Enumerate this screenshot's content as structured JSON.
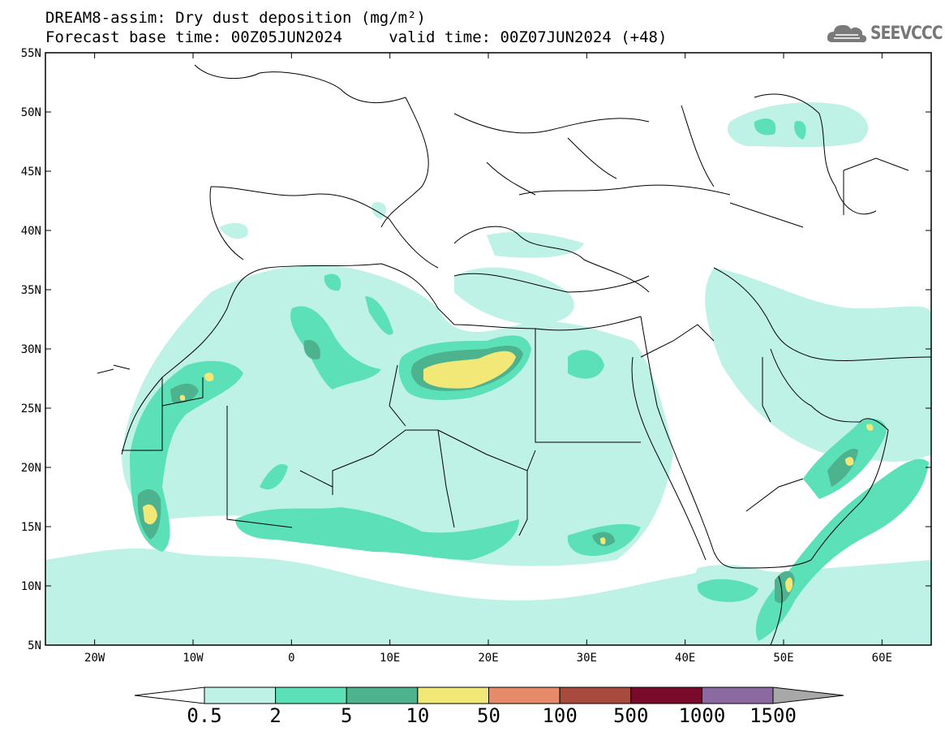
{
  "title": {
    "line1": "DREAM8-assim: Dry dust deposition (mg/m²)",
    "line2": "Forecast base time: 00Z05JUN2024     valid time: 00Z07JUN2024 (+48)"
  },
  "logo": {
    "text": "SEEVCCC",
    "icon": "cloud-icon"
  },
  "map": {
    "projection": "lat-lon",
    "lon_range": [
      -25,
      65
    ],
    "lat_range": [
      5,
      55
    ],
    "lat_ticks": [
      {
        "value": 55,
        "label": "55N"
      },
      {
        "value": 50,
        "label": "50N"
      },
      {
        "value": 45,
        "label": "45N"
      },
      {
        "value": 40,
        "label": "40N"
      },
      {
        "value": 35,
        "label": "35N"
      },
      {
        "value": 30,
        "label": "30N"
      },
      {
        "value": 25,
        "label": "25N"
      },
      {
        "value": 20,
        "label": "20N"
      },
      {
        "value": 15,
        "label": "15N"
      },
      {
        "value": 10,
        "label": "10N"
      },
      {
        "value": 5,
        "label": "5N"
      }
    ],
    "lon_ticks": [
      {
        "value": -20,
        "label": "20W"
      },
      {
        "value": -10,
        "label": "10W"
      },
      {
        "value": 0,
        "label": "0"
      },
      {
        "value": 10,
        "label": "10E"
      },
      {
        "value": 20,
        "label": "20E"
      },
      {
        "value": 30,
        "label": "30E"
      },
      {
        "value": 40,
        "label": "40E"
      },
      {
        "value": 50,
        "label": "50E"
      },
      {
        "value": 60,
        "label": "60E"
      }
    ]
  },
  "colorbar": {
    "levels": [
      "0.5",
      "2",
      "5",
      "10",
      "50",
      "100",
      "500",
      "1000",
      "1500"
    ],
    "colors": [
      "#bff2e6",
      "#5ce0b8",
      "#4cb38e",
      "#f2e878",
      "#e68a6a",
      "#a84a3e",
      "#7a0a2a",
      "#8a6aa0"
    ],
    "under_color": "#ffffff",
    "over_color": "#a8a8a8"
  }
}
